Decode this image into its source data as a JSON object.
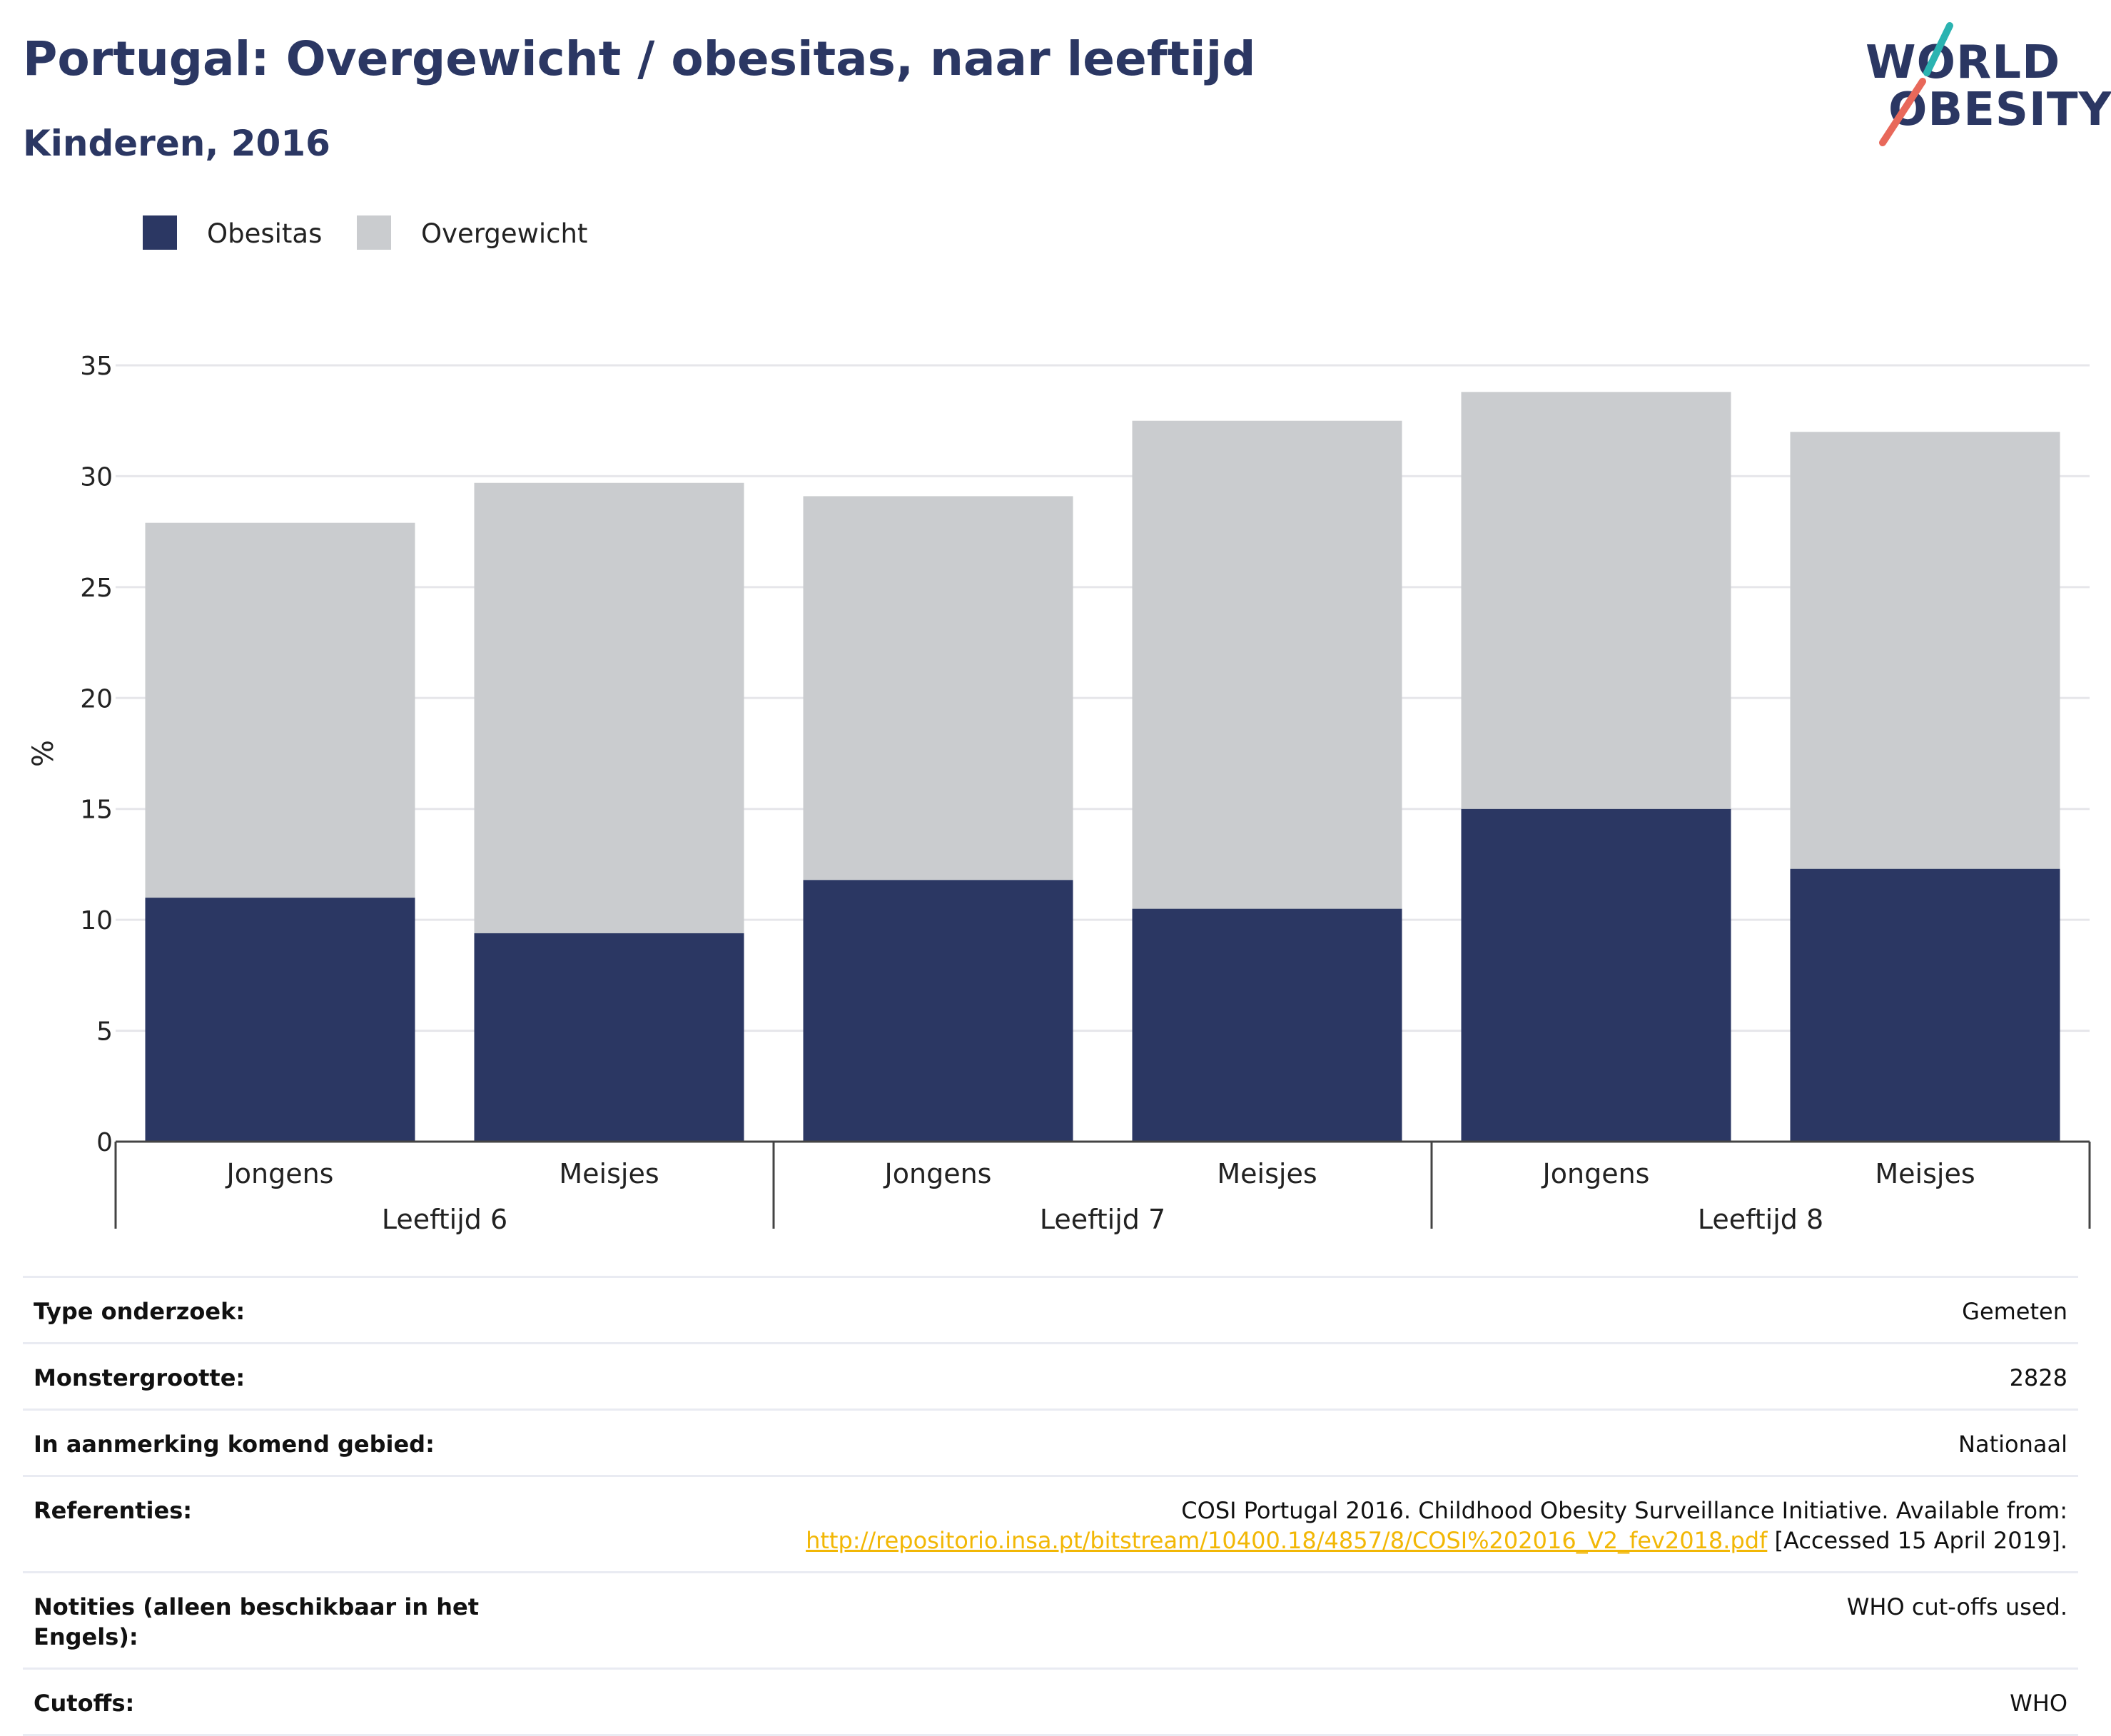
{
  "header": {
    "title": "Portugal: Overgewicht / obesitas, naar leeftijd",
    "subtitle": "Kinderen, 2016"
  },
  "logo": {
    "line1": "WORLD",
    "line2": "OBESITY",
    "accent_teal": "#2bb3b1",
    "accent_coral": "#e8685a"
  },
  "chart_data": {
    "type": "bar",
    "stacked": true,
    "groups": [
      "Leeftijd 6",
      "Leeftijd 7",
      "Leeftijd 8"
    ],
    "categories": [
      "Jongens",
      "Meisjes",
      "Jongens",
      "Meisjes",
      "Jongens",
      "Meisjes"
    ],
    "category_group_index": [
      0,
      0,
      1,
      1,
      2,
      2
    ],
    "series": [
      {
        "name": "Obesitas",
        "color": "#2b3763",
        "values": [
          11.0,
          9.4,
          11.8,
          10.5,
          15.0,
          12.3
        ]
      },
      {
        "name": "Overgewicht",
        "color": "#cacccf",
        "values": [
          16.9,
          20.3,
          17.3,
          22.0,
          18.8,
          19.7
        ]
      }
    ],
    "ylabel": "%",
    "ylim": [
      0,
      35
    ],
    "yticks": [
      0,
      5,
      10,
      15,
      20,
      25,
      30,
      35
    ],
    "grid": true,
    "legend_position": "top-left"
  },
  "info": [
    {
      "label": "Type onderzoek:",
      "value": "Gemeten"
    },
    {
      "label": "Monstergrootte:",
      "value": "2828"
    },
    {
      "label": "In aanmerking komend gebied:",
      "value": "Nationaal"
    },
    {
      "label": "Referenties:",
      "value": "COSI Portugal 2016. Childhood Obesity Surveillance Initiative. Available from:",
      "link": "http://repositorio.insa.pt/bitstream/10400.18/4857/8/COSI%202016_V2_fev2018.pdf",
      "suffix": " [Accessed 15 April 2019]."
    },
    {
      "label": "Notities (alleen beschikbaar in het Engels):",
      "value": "WHO cut-offs used."
    },
    {
      "label": "Cutoffs:",
      "value": "WHO"
    }
  ]
}
